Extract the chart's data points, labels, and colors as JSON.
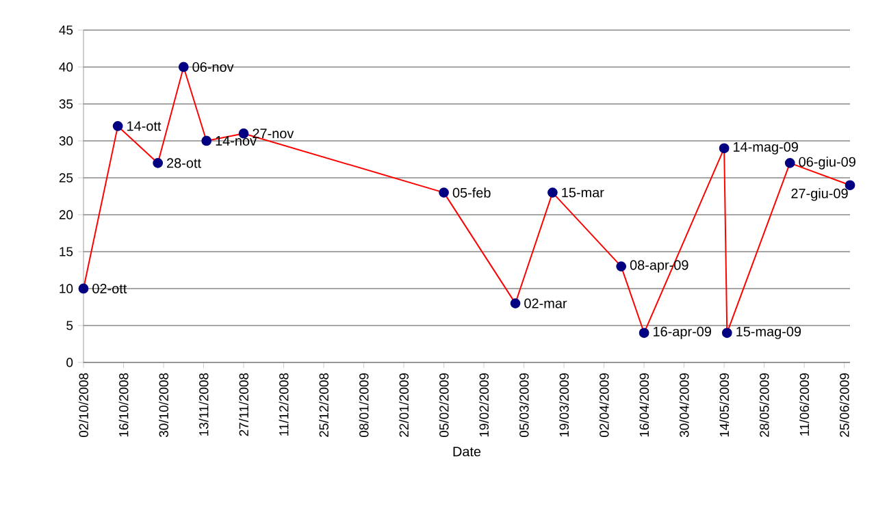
{
  "chart_data": {
    "type": "line",
    "xlabel": "Date",
    "x": [
      "2008-10-02",
      "2008-10-14",
      "2008-10-28",
      "2008-11-06",
      "2008-11-14",
      "2008-11-27",
      "2009-02-05",
      "2009-03-02",
      "2009-03-15",
      "2009-04-08",
      "2009-04-16",
      "2009-05-14",
      "2009-05-15",
      "2009-06-06",
      "2009-06-27"
    ],
    "series": [
      {
        "color": "#ff0000",
        "values": [
          10,
          32,
          27,
          40,
          30,
          31,
          23,
          8,
          23,
          13,
          4,
          29,
          4,
          27,
          24
        ]
      }
    ],
    "marker": "circle",
    "grid": "y",
    "xlim": [
      "2008-10-02",
      "2009-06-27"
    ],
    "xticks": [
      {
        "value": "2008-10-02",
        "label": "02/10/2008"
      },
      {
        "value": "2008-10-16",
        "label": "16/10/2008"
      },
      {
        "value": "2008-10-30",
        "label": "30/10/2008"
      },
      {
        "value": "2008-11-13",
        "label": "13/11/2008"
      },
      {
        "value": "2008-11-27",
        "label": "27/11/2008"
      },
      {
        "value": "2008-12-11",
        "label": "11/12/2008"
      },
      {
        "value": "2008-12-25",
        "label": "25/12/2008"
      },
      {
        "value": "2009-01-08",
        "label": "08/01/2009"
      },
      {
        "value": "2009-01-22",
        "label": "22/01/2009"
      },
      {
        "value": "2009-02-05",
        "label": "05/02/2009"
      },
      {
        "value": "2009-02-19",
        "label": "19/02/2009"
      },
      {
        "value": "2009-03-05",
        "label": "05/03/2009"
      },
      {
        "value": "2009-03-19",
        "label": "19/03/2009"
      },
      {
        "value": "2009-04-02",
        "label": "02/04/2009"
      },
      {
        "value": "2009-04-16",
        "label": "16/04/2009"
      },
      {
        "value": "2009-04-30",
        "label": "30/04/2009"
      },
      {
        "value": "2009-05-14",
        "label": "14/05/2009"
      },
      {
        "value": "2009-05-28",
        "label": "28/05/2009"
      },
      {
        "value": "2009-06-11",
        "label": "11/06/2009"
      },
      {
        "value": "2009-06-25",
        "label": "25/06/2009"
      }
    ],
    "ylim": [
      0,
      45
    ],
    "yticks": [
      0,
      5,
      10,
      15,
      20,
      25,
      30,
      35,
      40,
      45
    ],
    "annotations": [
      {
        "text": "02-ott",
        "x": "2008-10-02",
        "y": 10
      },
      {
        "text": "14-ott",
        "x": "2008-10-14",
        "y": 32
      },
      {
        "text": "28-ott",
        "x": "2008-10-28",
        "y": 27
      },
      {
        "text": "06-nov",
        "x": "2008-11-06",
        "y": 40
      },
      {
        "text": "14-nov",
        "x": "2008-11-14",
        "y": 30
      },
      {
        "text": "27-nov",
        "x": "2008-11-27",
        "y": 31
      },
      {
        "text": "05-feb",
        "x": "2009-02-05",
        "y": 23
      },
      {
        "text": "02-mar",
        "x": "2009-03-02",
        "y": 8
      },
      {
        "text": "15-mar",
        "x": "2009-03-15",
        "y": 23
      },
      {
        "text": "08-apr-09",
        "x": "2009-04-08",
        "y": 13
      },
      {
        "text": "16-apr-09",
        "x": "2009-04-16",
        "y": 4
      },
      {
        "text": "14-mag-09",
        "x": "2009-05-14",
        "y": 29
      },
      {
        "text": "15-mag-09",
        "x": "2009-05-15",
        "y": 4
      },
      {
        "text": "06-giu-09",
        "x": "2009-06-06",
        "y": 27
      },
      {
        "text": "27-giu-09",
        "x": "2009-06-27",
        "y": 24
      }
    ]
  }
}
